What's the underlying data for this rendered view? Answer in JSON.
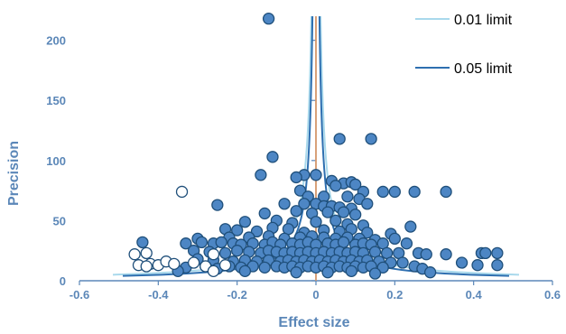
{
  "chart_data": {
    "type": "scatter",
    "title": "",
    "xlabel": "Effect size",
    "ylabel": "Precision",
    "xlim": [
      -0.6,
      0.6
    ],
    "ylim": [
      0,
      220
    ],
    "x_ticks": [
      "-0.6",
      "-0.4",
      "-0.2",
      "0",
      "0.2",
      "0.4",
      "0.6"
    ],
    "y_ticks": [
      "0",
      "50",
      "100",
      "150",
      "200"
    ],
    "legend": {
      "position": "top-right",
      "entries": [
        {
          "label": "0.01 limit",
          "color": "#a9d9ec"
        },
        {
          "label": "0.05 limit",
          "color": "#2e6fb0"
        }
      ]
    },
    "colors": {
      "axis": "#5b87b8",
      "marker_fill": "#4d86c4",
      "marker_edge": "#1f4f7a",
      "hollow_fill": "#ffffff",
      "center_line": "#e89659",
      "limit_001": "#a9d9ec",
      "limit_005": "#2e6fb0"
    },
    "contours": [
      {
        "name": "0.01 limit",
        "z": 2.576
      },
      {
        "name": "0.05 limit",
        "z": 1.96
      }
    ],
    "series": [
      {
        "marker": "filled",
        "points": [
          [
            -0.12,
            218
          ],
          [
            -0.11,
            103
          ],
          [
            -0.03,
            88
          ],
          [
            0.0,
            88
          ],
          [
            -0.05,
            86
          ],
          [
            0.06,
            118
          ],
          [
            0.14,
            118
          ],
          [
            0.04,
            83
          ],
          [
            0.07,
            81
          ],
          [
            0.09,
            82
          ],
          [
            0.1,
            80
          ],
          [
            0.05,
            79
          ],
          [
            0.12,
            74
          ],
          [
            0.17,
            74
          ],
          [
            0.2,
            74
          ],
          [
            0.25,
            74
          ],
          [
            0.33,
            74
          ],
          [
            -0.14,
            88
          ],
          [
            -0.04,
            75
          ],
          [
            -0.02,
            70
          ],
          [
            0.02,
            70
          ],
          [
            0.08,
            70
          ],
          [
            0.11,
            68
          ],
          [
            -0.25,
            63
          ],
          [
            -0.08,
            64
          ],
          [
            -0.03,
            64
          ],
          [
            0.0,
            64
          ],
          [
            0.02,
            62
          ],
          [
            0.04,
            62
          ],
          [
            0.06,
            61
          ],
          [
            0.09,
            60
          ],
          [
            0.13,
            64
          ],
          [
            -0.13,
            56
          ],
          [
            -0.05,
            58
          ],
          [
            -0.01,
            56
          ],
          [
            0.03,
            57
          ],
          [
            0.07,
            57
          ],
          [
            0.1,
            55
          ],
          [
            -0.18,
            49
          ],
          [
            -0.1,
            50
          ],
          [
            -0.06,
            48
          ],
          [
            0.0,
            49
          ],
          [
            0.05,
            50
          ],
          [
            0.08,
            47
          ],
          [
            0.12,
            46
          ],
          [
            0.24,
            45
          ],
          [
            -0.23,
            43
          ],
          [
            -0.2,
            42
          ],
          [
            -0.15,
            41
          ],
          [
            -0.11,
            44
          ],
          [
            -0.07,
            43
          ],
          [
            -0.03,
            40
          ],
          [
            0.02,
            42
          ],
          [
            0.06,
            41
          ],
          [
            0.09,
            43
          ],
          [
            0.13,
            40
          ],
          [
            0.19,
            39
          ],
          [
            -0.3,
            35
          ],
          [
            -0.22,
            36
          ],
          [
            -0.17,
            36
          ],
          [
            -0.12,
            37
          ],
          [
            -0.08,
            35
          ],
          [
            -0.04,
            36
          ],
          [
            -0.01,
            37
          ],
          [
            0.02,
            36
          ],
          [
            0.05,
            35
          ],
          [
            0.08,
            36
          ],
          [
            0.11,
            35
          ],
          [
            0.15,
            34
          ],
          [
            0.2,
            35
          ],
          [
            -0.44,
            32
          ],
          [
            -0.33,
            31
          ],
          [
            -0.29,
            32
          ],
          [
            -0.26,
            31
          ],
          [
            -0.24,
            32
          ],
          [
            -0.21,
            31
          ],
          [
            -0.19,
            30
          ],
          [
            -0.16,
            31
          ],
          [
            -0.13,
            30
          ],
          [
            -0.11,
            32
          ],
          [
            -0.09,
            30
          ],
          [
            -0.06,
            31
          ],
          [
            -0.04,
            30
          ],
          [
            -0.02,
            32
          ],
          [
            0.0,
            30
          ],
          [
            0.03,
            31
          ],
          [
            0.05,
            30
          ],
          [
            0.07,
            32
          ],
          [
            0.1,
            30
          ],
          [
            0.12,
            31
          ],
          [
            0.14,
            30
          ],
          [
            0.17,
            31
          ],
          [
            0.23,
            31
          ],
          [
            -0.31,
            25
          ],
          [
            -0.27,
            24
          ],
          [
            -0.23,
            23
          ],
          [
            -0.2,
            25
          ],
          [
            -0.17,
            24
          ],
          [
            -0.14,
            23
          ],
          [
            -0.12,
            25
          ],
          [
            -0.1,
            24
          ],
          [
            -0.08,
            23
          ],
          [
            -0.06,
            24
          ],
          [
            -0.04,
            23
          ],
          [
            -0.02,
            24
          ],
          [
            0.0,
            23
          ],
          [
            0.02,
            24
          ],
          [
            0.04,
            23
          ],
          [
            0.06,
            24
          ],
          [
            0.08,
            23
          ],
          [
            0.1,
            24
          ],
          [
            0.12,
            23
          ],
          [
            0.15,
            24
          ],
          [
            0.18,
            23
          ],
          [
            0.21,
            23
          ],
          [
            0.26,
            23
          ],
          [
            0.28,
            22
          ],
          [
            0.33,
            22
          ],
          [
            0.42,
            23
          ],
          [
            0.43,
            23
          ],
          [
            0.46,
            23
          ],
          [
            -0.3,
            18
          ],
          [
            -0.26,
            17
          ],
          [
            -0.21,
            16
          ],
          [
            -0.18,
            17
          ],
          [
            -0.15,
            16
          ],
          [
            -0.12,
            17
          ],
          [
            -0.09,
            16
          ],
          [
            -0.07,
            17
          ],
          [
            -0.05,
            16
          ],
          [
            -0.03,
            17
          ],
          [
            -0.01,
            16
          ],
          [
            0.01,
            17
          ],
          [
            0.03,
            16
          ],
          [
            0.05,
            17
          ],
          [
            0.07,
            16
          ],
          [
            0.09,
            17
          ],
          [
            0.11,
            16
          ],
          [
            0.13,
            17
          ],
          [
            0.16,
            16
          ],
          [
            0.19,
            15
          ],
          [
            0.22,
            15
          ],
          [
            0.37,
            15
          ],
          [
            -0.33,
            11
          ],
          [
            -0.28,
            12
          ],
          [
            -0.25,
            10
          ],
          [
            -0.22,
            12
          ],
          [
            -0.19,
            11
          ],
          [
            -0.16,
            12
          ],
          [
            -0.13,
            11
          ],
          [
            -0.1,
            12
          ],
          [
            -0.08,
            11
          ],
          [
            -0.06,
            12
          ],
          [
            -0.04,
            11
          ],
          [
            -0.02,
            12
          ],
          [
            0.0,
            11
          ],
          [
            0.02,
            12
          ],
          [
            0.04,
            11
          ],
          [
            0.06,
            12
          ],
          [
            0.08,
            11
          ],
          [
            0.1,
            12
          ],
          [
            0.12,
            11
          ],
          [
            0.14,
            12
          ],
          [
            0.17,
            11
          ],
          [
            0.25,
            12
          ],
          [
            0.27,
            10
          ],
          [
            0.41,
            13
          ],
          [
            0.46,
            13
          ],
          [
            -0.35,
            8
          ],
          [
            -0.18,
            8
          ],
          [
            -0.05,
            7
          ],
          [
            0.03,
            7
          ],
          [
            0.09,
            8
          ],
          [
            0.15,
            6
          ],
          [
            0.29,
            7
          ]
        ]
      },
      {
        "marker": "hollow",
        "points": [
          [
            -0.34,
            74
          ],
          [
            -0.46,
            22
          ],
          [
            -0.43,
            23
          ],
          [
            -0.45,
            13
          ],
          [
            -0.42,
            14
          ],
          [
            -0.4,
            13
          ],
          [
            -0.38,
            16
          ],
          [
            -0.36,
            14
          ],
          [
            -0.31,
            15
          ],
          [
            -0.28,
            12
          ],
          [
            -0.26,
            22
          ],
          [
            -0.26,
            8
          ],
          [
            -0.23,
            13
          ],
          [
            -0.43,
            12
          ]
        ]
      }
    ]
  }
}
